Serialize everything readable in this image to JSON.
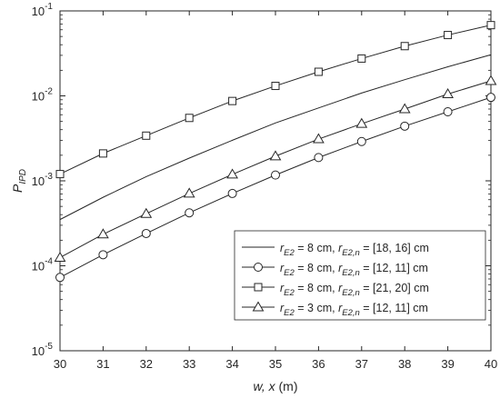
{
  "chart_data": {
    "type": "line",
    "xlabel_main": "w, x",
    "xlabel_unit": " (m)",
    "ylabel_main": "P",
    "ylabel_sub": "IPD",
    "xlim": [
      30,
      40
    ],
    "ylim": [
      1e-05,
      0.1
    ],
    "yscale": "log",
    "grid": false,
    "legend_position": "bottom-right",
    "x_ticks": [
      "30",
      "31",
      "32",
      "33",
      "34",
      "35",
      "36",
      "37",
      "38",
      "39",
      "40"
    ],
    "y_ticks": [
      {
        "value": 0.1,
        "base": "10",
        "exp": "-1"
      },
      {
        "value": 0.01,
        "base": "10",
        "exp": "-2"
      },
      {
        "value": 0.001,
        "base": "10",
        "exp": "-3"
      },
      {
        "value": 0.0001,
        "base": "10",
        "exp": "-4"
      },
      {
        "value": 1e-05,
        "base": "10",
        "exp": "-5"
      }
    ],
    "x": [
      30,
      31,
      32,
      33,
      34,
      35,
      36,
      37,
      38,
      39,
      40
    ],
    "series": [
      {
        "legend": [
          {
            "t": "r",
            "italic": true
          },
          {
            "t": "E2",
            "italic": true,
            "sub": true
          },
          {
            "t": " = 8 cm, "
          },
          {
            "t": "r",
            "italic": true
          },
          {
            "t": "E2,n",
            "italic": true,
            "sub": true
          },
          {
            "t": " = [18, 16] cm"
          }
        ],
        "marker": "none",
        "values": [
          0.00035,
          0.00064,
          0.00112,
          0.00185,
          0.003,
          0.0048,
          0.0072,
          0.0108,
          0.0155,
          0.022,
          0.0305
        ]
      },
      {
        "legend": [
          {
            "t": "r",
            "italic": true
          },
          {
            "t": "E2",
            "italic": true,
            "sub": true
          },
          {
            "t": " = 8 cm, "
          },
          {
            "t": "r",
            "italic": true
          },
          {
            "t": "E2,n",
            "italic": true,
            "sub": true
          },
          {
            "t": " = [12, 11] cm"
          }
        ],
        "marker": "circle",
        "values": [
          7.3e-05,
          0.000135,
          0.00024,
          0.00042,
          0.00071,
          0.00117,
          0.00188,
          0.0029,
          0.0044,
          0.0065,
          0.0096
        ]
      },
      {
        "legend": [
          {
            "t": "r",
            "italic": true
          },
          {
            "t": "E2",
            "italic": true,
            "sub": true
          },
          {
            "t": " = 8 cm, "
          },
          {
            "t": "r",
            "italic": true
          },
          {
            "t": "E2,n",
            "italic": true,
            "sub": true
          },
          {
            "t": " = [21, 20] cm"
          }
        ],
        "marker": "square",
        "values": [
          0.0012,
          0.0021,
          0.0034,
          0.0055,
          0.0087,
          0.0131,
          0.0192,
          0.0275,
          0.0385,
          0.052,
          0.068
        ]
      },
      {
        "legend": [
          {
            "t": "r",
            "italic": true
          },
          {
            "t": "E2",
            "italic": true,
            "sub": true
          },
          {
            "t": " = 3 cm, "
          },
          {
            "t": "r",
            "italic": true
          },
          {
            "t": "E2,n",
            "italic": true,
            "sub": true
          },
          {
            "t": " = [12, 11] cm"
          }
        ],
        "marker": "triangle",
        "values": [
          0.000125,
          0.000235,
          0.00041,
          0.00071,
          0.00119,
          0.00195,
          0.0031,
          0.0047,
          0.007,
          0.0105,
          0.015
        ]
      }
    ]
  },
  "colors": {
    "line": "#262626",
    "axis": "#262626",
    "background": "#ffffff"
  }
}
